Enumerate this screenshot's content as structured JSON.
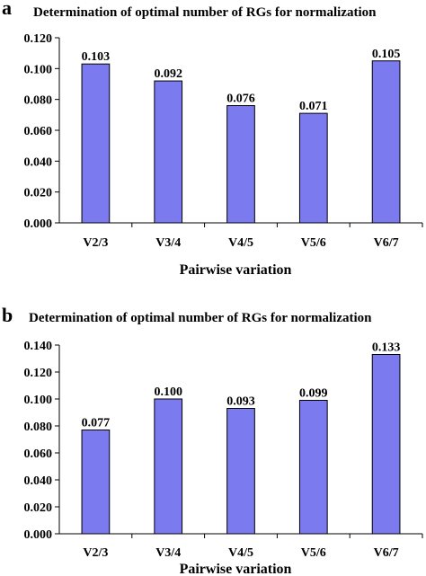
{
  "chart_data": [
    {
      "type": "bar",
      "panel": "a",
      "title": "Determination of optimal number of RGs for normalization",
      "xlabel": "Pairwise variation",
      "ylabel": "",
      "categories": [
        "V2/3",
        "V3/4",
        "V4/5",
        "V5/6",
        "V6/7"
      ],
      "values": [
        0.103,
        0.092,
        0.076,
        0.071,
        0.105
      ],
      "value_labels": [
        "0.103",
        "0.092",
        "0.076",
        "0.071",
        "0.105"
      ],
      "yticks": [
        "0.000",
        "0.020",
        "0.040",
        "0.060",
        "0.080",
        "0.100",
        "0.120"
      ],
      "ylim": [
        0,
        0.12
      ],
      "grid": false,
      "bar_color": "#7b7bef"
    },
    {
      "type": "bar",
      "panel": "b",
      "title": "Determination of optimal number of RGs for normalization",
      "xlabel": "Pairwise variation",
      "ylabel": "",
      "categories": [
        "V2/3",
        "V3/4",
        "V4/5",
        "V5/6",
        "V6/7"
      ],
      "values": [
        0.077,
        0.1,
        0.093,
        0.099,
        0.133
      ],
      "value_labels": [
        "0.077",
        "0.100",
        "0.093",
        "0.099",
        "0.133"
      ],
      "yticks": [
        "0.000",
        "0.020",
        "0.040",
        "0.060",
        "0.080",
        "0.100",
        "0.120",
        "0.140"
      ],
      "ylim": [
        0,
        0.14
      ],
      "grid": false,
      "bar_color": "#7b7bef"
    }
  ]
}
